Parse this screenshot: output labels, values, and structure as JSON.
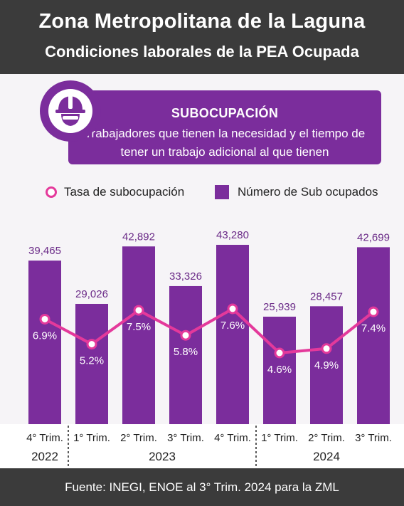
{
  "header": {
    "title": "Zona Metropolitana de la Laguna",
    "subtitle": "Condiciones laborales de la PEA Ocupada"
  },
  "banner": {
    "icon": "worker-hardhat-icon",
    "title": "SUBOCUPACIÓN",
    "line1": "Trabajadores que tienen la necesidad y el tiempo de",
    "line2": "tener un trabajo adicional al que tienen"
  },
  "legend": {
    "line_label": "Tasa de subocupación",
    "bar_label": "Número de Sub ocupados"
  },
  "colors": {
    "bar": "#7b2d9c",
    "line": "#e4399b",
    "header": "#3b3b3b"
  },
  "chart_data": {
    "type": "bar",
    "categories": [
      "4° Trim.",
      "1° Trim.",
      "2° Trim.",
      "3° Trim.",
      "4° Trim.",
      "1° Trim.",
      "2° Trim.",
      "3° Trim."
    ],
    "groups": [
      {
        "label": "2022",
        "start": 0,
        "end": 0
      },
      {
        "label": "2023",
        "start": 1,
        "end": 4
      },
      {
        "label": "2024",
        "start": 5,
        "end": 7
      }
    ],
    "series": [
      {
        "name": "Número de Sub ocupados",
        "type": "bar",
        "values": [
          39465,
          29026,
          42892,
          33326,
          43280,
          25939,
          28457,
          42699
        ],
        "labels": [
          "39,465",
          "29,026",
          "42,892",
          "33,326",
          "43,280",
          "25,939",
          "28,457",
          "42,699"
        ]
      },
      {
        "name": "Tasa de subocupación",
        "type": "line",
        "values": [
          6.9,
          5.2,
          7.5,
          5.8,
          7.6,
          4.6,
          4.9,
          7.4
        ],
        "labels": [
          "6.9%",
          "5.2%",
          "7.5%",
          "5.8%",
          "7.6%",
          "4.6%",
          "4.9%",
          "7.4%"
        ]
      }
    ]
  },
  "footer": {
    "source": "Fuente: INEGI, ENOE al 3° Trim. 2024 para la ZML"
  }
}
